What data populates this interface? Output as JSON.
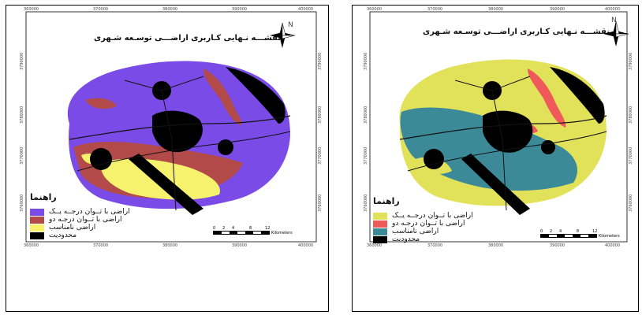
{
  "maps": [
    {
      "title": "نقشـــه نـهایی کـاربری اراضـــی توسـعه شـهری",
      "legend_title": "راهنما",
      "north_label": "N",
      "x_ticks": [
        "360000",
        "370000",
        "380000",
        "390000",
        "400000"
      ],
      "y_ticks": [
        "3790000",
        "3780000",
        "3770000",
        "3760000"
      ],
      "scale": {
        "ticks": [
          "0",
          "2",
          "4",
          "8",
          "12"
        ],
        "unit": "Kilometers"
      },
      "legend": [
        {
          "label": "اراضی با تــوان درجــه یــک",
          "color": "#7b4be8"
        },
        {
          "label": "اراضی با تــوان درجـه دو",
          "color": "#b34a4a"
        },
        {
          "label": "اراضی نامناسب",
          "color": "#f7f26e"
        },
        {
          "label": "محدودیت",
          "color": "#000000"
        }
      ],
      "colors": {
        "class1": "#7b4be8",
        "class2": "#b34a4a",
        "class3": "#f7f26e",
        "restricted": "#000000"
      }
    },
    {
      "title": "نقشـــه نـهایی کـاربری اراضـــی توسـعه شـهری",
      "legend_title": "راهنما",
      "north_label": "N",
      "x_ticks": [
        "360000",
        "370000",
        "380000",
        "390000",
        "400000"
      ],
      "y_ticks": [
        "3790000",
        "3780000",
        "3770000",
        "3760000"
      ],
      "scale": {
        "ticks": [
          "0",
          "2",
          "4",
          "8",
          "12"
        ],
        "unit": "Kilometers"
      },
      "legend": [
        {
          "label": "اراضی با تــوان درجــه یــک",
          "color": "#e2e25a"
        },
        {
          "label": "اراضی با تــوان درجـه دو",
          "color": "#ee5a5a"
        },
        {
          "label": "اراضی نامناسب",
          "color": "#3c8a98"
        },
        {
          "label": "محدودیت",
          "color": "#000000"
        }
      ],
      "colors": {
        "class1": "#e2e25a",
        "class2": "#ee5a5a",
        "class3": "#3c8a98",
        "restricted": "#000000"
      }
    }
  ]
}
